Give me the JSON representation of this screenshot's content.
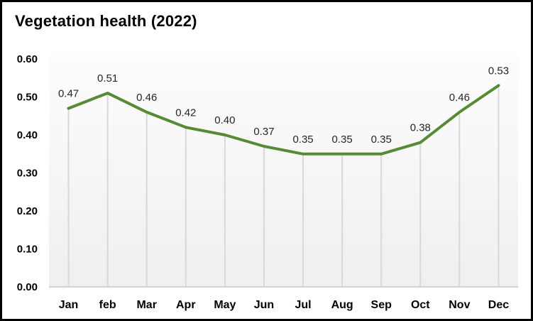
{
  "chart_data": {
    "type": "line",
    "title": "Vegetation health (2022)",
    "categories": [
      "Jan",
      "feb",
      "Mar",
      "Apr",
      "May",
      "Jun",
      "Jul",
      "Aug",
      "Sep",
      "Oct",
      "Nov",
      "Dec"
    ],
    "values": [
      0.47,
      0.51,
      0.46,
      0.42,
      0.4,
      0.37,
      0.35,
      0.35,
      0.35,
      0.38,
      0.46,
      0.53
    ],
    "data_labels": [
      "0.47",
      "0.51",
      "0.46",
      "0.42",
      "0.40",
      "0.37",
      "0.35",
      "0.35",
      "0.35",
      "0.38",
      "0.46",
      "0.53"
    ],
    "xlabel": "",
    "ylabel": "",
    "ylim": [
      0.0,
      0.6
    ],
    "y_ticks": [
      "0.60",
      "0.50",
      "0.40",
      "0.30",
      "0.20",
      "0.10",
      "0.00"
    ],
    "y_tick_values": [
      0.6,
      0.5,
      0.4,
      0.3,
      0.2,
      0.1,
      0.0
    ],
    "grid": "vertical drop lines from each data point, no horizontal gridlines",
    "legend": "none",
    "colors": {
      "line": "#568a35",
      "drop_line": "#d8d8d8",
      "axis_line": "#d4d4d4",
      "data_label_text": "#262626",
      "tick_text": "#000000",
      "plot_bg_top": "#fdfdfd",
      "plot_bg_bottom": "#efefef",
      "frame_border": "#000000"
    }
  }
}
